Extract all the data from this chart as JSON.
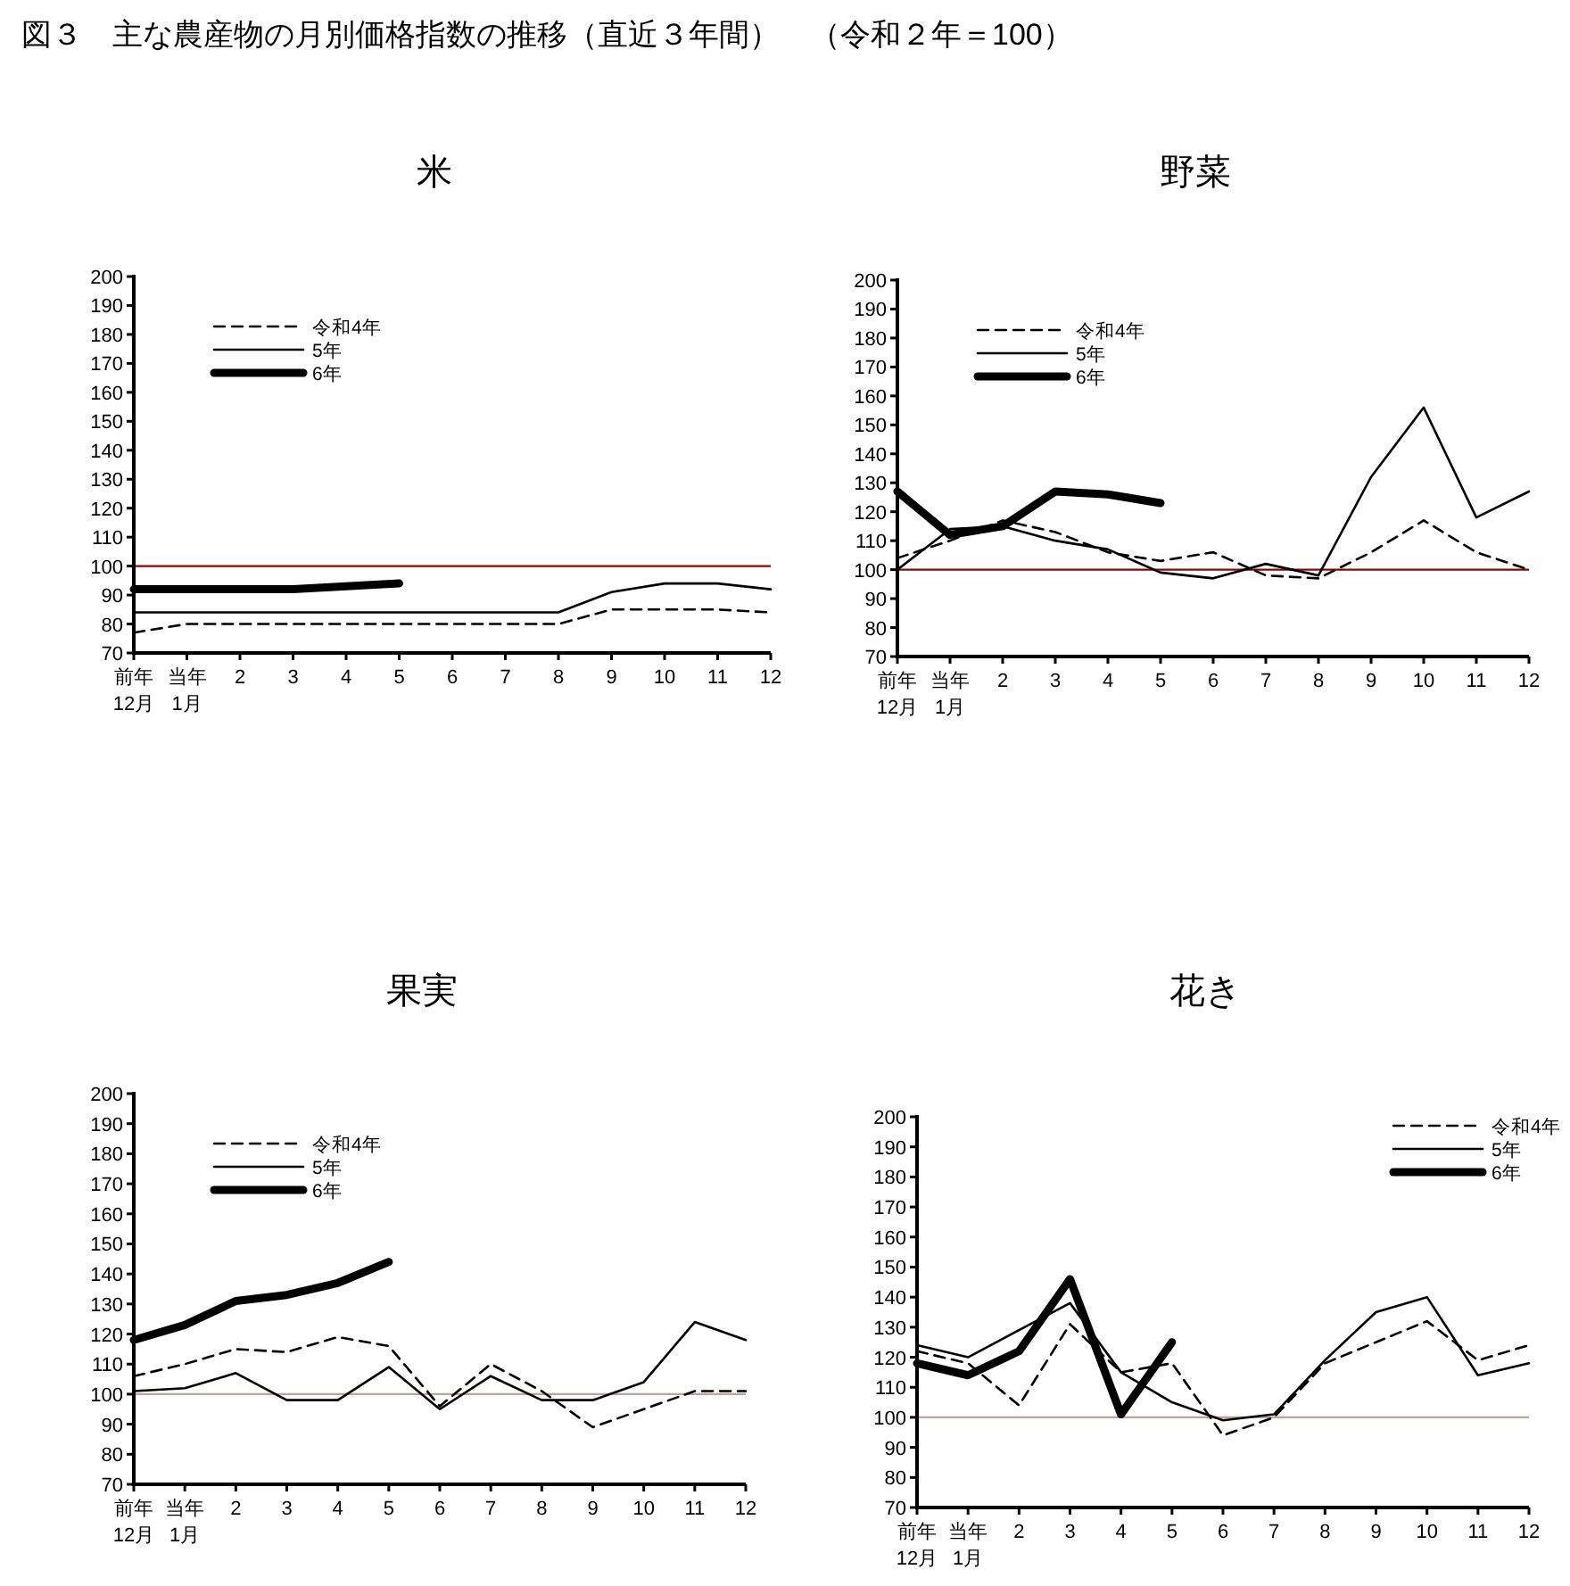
{
  "chart_data": [
    {
      "type": "line",
      "title": "米",
      "annotations": [
        "図３　主な農産物の月別価格指数の推移（直近３年間）　（令和２年＝100）"
      ],
      "categories": [
        "前年 12月",
        "当年 1月",
        "2",
        "3",
        "4",
        "5",
        "6",
        "7",
        "8",
        "9",
        "10",
        "11",
        "12"
      ],
      "ylim": [
        70,
        200
      ],
      "yticks": [
        70,
        80,
        90,
        100,
        110,
        120,
        130,
        140,
        150,
        160,
        170,
        180,
        190,
        200
      ],
      "legend": "top left",
      "ref_lines": [
        {
          "axis": "y",
          "value": 100,
          "color": "#990000"
        }
      ],
      "series": [
        {
          "name": "令和4年",
          "color": "#000000",
          "line_style": "dashed",
          "values": [
            77,
            80,
            80,
            80,
            80,
            80,
            80,
            80,
            80,
            85,
            85,
            85,
            84
          ]
        },
        {
          "name": "5年",
          "color": "#000000",
          "line_style": "solid",
          "values": [
            84,
            84,
            84,
            84,
            84,
            84,
            84,
            84,
            84,
            91,
            94,
            94,
            92
          ]
        },
        {
          "name": "6年",
          "color": "#000000",
          "line_style": "solid",
          "values": [
            92,
            92,
            92,
            92,
            93,
            94,
            null,
            null,
            null,
            null,
            null,
            null,
            null
          ]
        }
      ]
    },
    {
      "type": "line",
      "title": "野菜",
      "categories": [
        "前年 12月",
        "当年 1月",
        "2",
        "3",
        "4",
        "5",
        "6",
        "7",
        "8",
        "9",
        "10",
        "11",
        "12"
      ],
      "ylim": [
        70,
        200
      ],
      "yticks": [
        70,
        80,
        90,
        100,
        110,
        120,
        130,
        140,
        150,
        160,
        170,
        180,
        190,
        200
      ],
      "legend": "top left",
      "ref_lines": [
        {
          "axis": "y",
          "value": 100,
          "color": "#990000"
        }
      ],
      "series": [
        {
          "name": "令和4年",
          "color": "#000000",
          "line_style": "dashed",
          "values": [
            104,
            110,
            117,
            113,
            106,
            103,
            106,
            98,
            97,
            106,
            117,
            106,
            100
          ]
        },
        {
          "name": "5年",
          "color": "#000000",
          "line_style": "solid",
          "values": [
            100,
            114,
            115,
            110,
            107,
            99,
            97,
            102,
            98,
            132,
            156,
            118,
            127
          ]
        },
        {
          "name": "6年",
          "color": "#000000",
          "line_style": "solid",
          "values": [
            127,
            112,
            115,
            127,
            126,
            123,
            null,
            null,
            null,
            null,
            null,
            null,
            null
          ]
        }
      ]
    },
    {
      "type": "line",
      "title": "果実",
      "categories": [
        "前年 12月",
        "当年 1月",
        "2",
        "3",
        "4",
        "5",
        "6",
        "7",
        "8",
        "9",
        "10",
        "11",
        "12"
      ],
      "ylim": [
        70,
        200
      ],
      "yticks": [
        70,
        80,
        90,
        100,
        110,
        120,
        130,
        140,
        150,
        160,
        170,
        180,
        190,
        200
      ],
      "legend": "top left",
      "ref_lines": [
        {
          "axis": "y",
          "value": 100,
          "color": "#c0a0a0"
        }
      ],
      "series": [
        {
          "name": "令和4年",
          "color": "#000000",
          "line_style": "dashed",
          "values": [
            106,
            110,
            115,
            114,
            119,
            116,
            96,
            110,
            101,
            89,
            95,
            101,
            101
          ]
        },
        {
          "name": "5年",
          "color": "#000000",
          "line_style": "solid",
          "values": [
            101,
            102,
            107,
            98,
            98,
            109,
            95,
            106,
            98,
            98,
            104,
            124,
            118
          ]
        },
        {
          "name": "6年",
          "color": "#000000",
          "line_style": "solid",
          "values": [
            118,
            123,
            131,
            133,
            137,
            144,
            null,
            null,
            null,
            null,
            null,
            null,
            null
          ]
        }
      ]
    },
    {
      "type": "line",
      "title": "花き",
      "categories": [
        "前年 12月",
        "当年 1月",
        "2",
        "3",
        "4",
        "5",
        "6",
        "7",
        "8",
        "9",
        "10",
        "11",
        "12"
      ],
      "ylim": [
        70,
        200
      ],
      "yticks": [
        70,
        80,
        90,
        100,
        110,
        120,
        130,
        140,
        150,
        160,
        170,
        180,
        190,
        200
      ],
      "legend": "top right",
      "ref_lines": [
        {
          "axis": "y",
          "value": 100,
          "color": "#c0a0a0"
        }
      ],
      "series": [
        {
          "name": "令和4年",
          "color": "#000000",
          "line_style": "dashed",
          "values": [
            122,
            118,
            104,
            131,
            115,
            118,
            94,
            100,
            118,
            125,
            132,
            119,
            124
          ]
        },
        {
          "name": "5年",
          "color": "#000000",
          "line_style": "solid",
          "values": [
            124,
            120,
            129,
            138,
            115,
            105,
            99,
            101,
            119,
            135,
            140,
            114,
            118
          ]
        },
        {
          "name": "6年",
          "color": "#000000",
          "line_style": "solid",
          "values": [
            118,
            114,
            122,
            146,
            101,
            125,
            null,
            null,
            null,
            null,
            null,
            null,
            null
          ]
        }
      ]
    }
  ]
}
